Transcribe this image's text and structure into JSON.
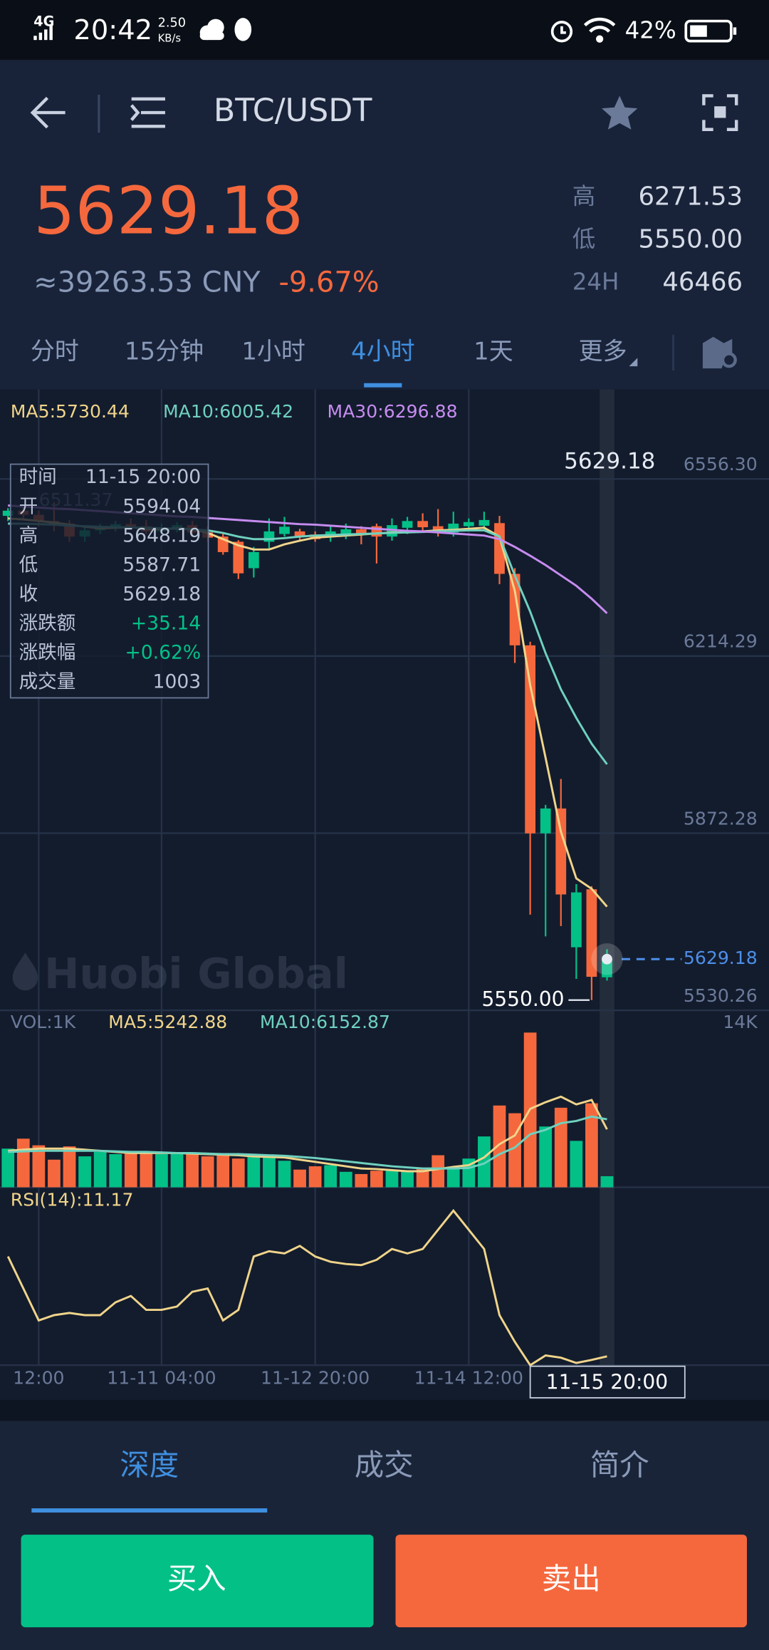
{
  "status_bar": {
    "network": "4G",
    "time": "20:42",
    "speed": "2.50",
    "speed_unit": "KB/s",
    "battery": "42%"
  },
  "header": {
    "pair": "BTC/USDT"
  },
  "ticker": {
    "price": "5629.18",
    "cny": "≈39263.53 CNY",
    "change": "-9.67%",
    "stats": [
      {
        "label": "高",
        "value": "6271.53"
      },
      {
        "label": "低",
        "value": "5550.00"
      },
      {
        "label": "24H",
        "value": "46466"
      }
    ]
  },
  "periods": {
    "items": [
      "分时",
      "15分钟",
      "1小时",
      "4小时",
      "1天",
      "更多"
    ],
    "active": 3
  },
  "chart_data": [
    {
      "type": "candlestick",
      "categories": [
        null,
        null,
        "12:00",
        null,
        null,
        null,
        null,
        null,
        null,
        null,
        "11-11 04:00",
        null,
        null,
        null,
        null,
        null,
        null,
        null,
        null,
        null,
        "11-12 20:00",
        null,
        null,
        null,
        null,
        null,
        null,
        null,
        null,
        null,
        "11-14 12:00",
        null,
        null,
        null,
        null,
        null,
        null,
        null,
        null,
        "11-15 20:00"
      ],
      "open": [
        6485,
        6495,
        6487,
        6475,
        6470,
        6445,
        6457,
        6463,
        6469,
        6465,
        6455,
        6461,
        6467,
        6453,
        6445,
        6435,
        6384,
        6435,
        6450,
        6455,
        6449,
        6445,
        6447,
        6459,
        6465,
        6445,
        6462,
        6475,
        6465,
        6453,
        6465,
        6466,
        6471,
        6373,
        6235,
        5872,
        5920,
        5652,
        5764,
        5594.04
      ],
      "high": [
        6500,
        6505,
        6495,
        6511.37,
        6477,
        6465,
        6470,
        6475,
        6480,
        6477,
        6470,
        6473,
        6475,
        6465,
        6450,
        6438,
        6425,
        6480,
        6483,
        6460,
        6455,
        6465,
        6470,
        6465,
        6470,
        6480,
        6483,
        6490,
        6498,
        6493,
        6480,
        6493,
        6485,
        6384,
        6242,
        5927,
        5977,
        5774,
        5770,
        5648.19
      ],
      "low": [
        6475,
        6480,
        6465,
        6455,
        6435,
        6435,
        6450,
        6455,
        6460,
        6450,
        6445,
        6453,
        6445,
        6435,
        6410,
        6363,
        6366,
        6420,
        6445,
        6437,
        6435,
        6435,
        6440,
        6430,
        6393,
        6437,
        6450,
        6455,
        6445,
        6445,
        6455,
        6459,
        6353,
        6201,
        5715,
        5673,
        5693,
        5591,
        5550,
        5587.71
      ],
      "close": [
        6495,
        6487,
        6475,
        6470,
        6445,
        6457,
        6463,
        6469,
        6465,
        6455,
        6461,
        6467,
        6453,
        6443,
        6415,
        6374,
        6415,
        6455,
        6464,
        6445,
        6440,
        6455,
        6459,
        6450,
        6445,
        6467,
        6475,
        6463,
        6453,
        6470,
        6473,
        6477,
        6373,
        6235,
        5872,
        5920,
        5754,
        5758,
        5595,
        5629.18
      ],
      "colors": {
        "up": "#03c087",
        "down": "#f5683d"
      },
      "ma_lines": [
        {
          "name": "MA5:5730.44",
          "color": "#f0d48a",
          "values": [
            6480,
            6478,
            6475,
            6472,
            6468,
            6464,
            6461,
            6462,
            6463,
            6460,
            6459,
            6461,
            6459,
            6452,
            6440,
            6428,
            6420,
            6420,
            6430,
            6437,
            6443,
            6445,
            6447,
            6449,
            6451,
            6453,
            6453,
            6455,
            6457,
            6458,
            6460,
            6462,
            6445,
            6340,
            6158,
            6018,
            5875,
            5785,
            5765,
            5730.44
          ]
        },
        {
          "name": "MA10:6005.42",
          "color": "#6fd1bf",
          "values": [
            6470,
            6470,
            6469,
            6468,
            6466,
            6465,
            6464,
            6463,
            6463,
            6462,
            6461,
            6460,
            6459,
            6457,
            6452,
            6445,
            6440,
            6440,
            6442,
            6445,
            6447,
            6448,
            6449,
            6450,
            6451,
            6452,
            6453,
            6454,
            6455,
            6456,
            6457,
            6457,
            6445,
            6370,
            6300,
            6220,
            6150,
            6095,
            6045,
            6005.42
          ]
        },
        {
          "name": "MA30:6296.88",
          "color": "#c68cf0",
          "values": [
            6505,
            6503,
            6501,
            6499,
            6498,
            6496,
            6494,
            6492,
            6490,
            6488,
            6486,
            6484,
            6483,
            6481,
            6479,
            6477,
            6475,
            6473,
            6471,
            6469,
            6468,
            6466,
            6464,
            6462,
            6460,
            6458,
            6456,
            6455,
            6453,
            6451,
            6449,
            6447,
            6440,
            6425,
            6408,
            6390,
            6370,
            6350,
            6325,
            6296.88
          ]
        }
      ],
      "ylim": [
        5530,
        6725
      ],
      "yticks": [
        {
          "value": 6556.3,
          "label": "6556.30"
        },
        6214.29,
        5872.28,
        5530.26
      ],
      "grid": true,
      "annotations": {
        "max_label": "6511.37",
        "min_label": "5550.00",
        "last_price_top": "5629.18",
        "last_price_line": "5629.18"
      },
      "watermark": "Huobi Global"
    },
    {
      "type": "bar",
      "label": "VOL:1K",
      "values": [
        3500,
        4400,
        3800,
        2500,
        3700,
        2800,
        3200,
        3000,
        3200,
        3100,
        3000,
        3100,
        3000,
        2800,
        2900,
        2600,
        2800,
        2700,
        2400,
        1600,
        1900,
        2000,
        1400,
        1200,
        1500,
        1600,
        1500,
        1700,
        2900,
        1700,
        2600,
        4600,
        7400,
        6700,
        14000,
        5500,
        7200,
        4200,
        7600,
        1003
      ],
      "ma_lines": [
        {
          "name": "MA5:5242.88",
          "color": "#f0d48a",
          "values": [
            3300,
            3400,
            3500,
            3500,
            3500,
            3400,
            3300,
            3200,
            3100,
            3100,
            3100,
            3100,
            3050,
            3000,
            2950,
            2900,
            2800,
            2750,
            2700,
            2500,
            2300,
            2100,
            1900,
            1700,
            1650,
            1550,
            1450,
            1450,
            1650,
            1850,
            2000,
            2700,
            3900,
            4700,
            7100,
            7700,
            8200,
            7500,
            7900,
            5242.88
          ]
        },
        {
          "name": "MA10:6152.87",
          "color": "#6fd1bf",
          "values": [
            3200,
            3250,
            3300,
            3300,
            3300,
            3300,
            3300,
            3250,
            3200,
            3200,
            3150,
            3100,
            3100,
            3050,
            3000,
            3000,
            2950,
            2900,
            2850,
            2750,
            2650,
            2500,
            2350,
            2200,
            2050,
            1900,
            1800,
            1700,
            1700,
            1700,
            1750,
            2150,
            3000,
            3600,
            4800,
            5200,
            5800,
            6000,
            6400,
            6152.87
          ]
        }
      ],
      "ylim": [
        0,
        16000
      ],
      "yticks": [
        {
          "value": 14000,
          "label": "14K"
        }
      ]
    },
    {
      "type": "line",
      "title": "RSI(14):11.17",
      "color": "#f0d48a",
      "values": [
        47.1,
        35.6,
        24.1,
        26,
        26.8,
        26,
        26,
        30.6,
        32.9,
        27.9,
        27.9,
        29.1,
        34.4,
        35.6,
        24.1,
        27.9,
        47.1,
        49,
        48.2,
        50.9,
        47.1,
        45.2,
        44.4,
        44,
        45.9,
        49.8,
        48.2,
        49.8,
        56.7,
        63.6,
        56.7,
        49.8,
        26,
        16.4,
        8,
        11.5,
        10.7,
        8.8,
        9.9,
        11.17
      ],
      "ylim": [
        8,
        72
      ]
    }
  ],
  "info_box": {
    "rows": [
      [
        "时间",
        "11-15 20:00"
      ],
      [
        "开",
        "5594.04"
      ],
      [
        "高",
        "5648.19"
      ],
      [
        "低",
        "5587.71"
      ],
      [
        "收",
        "5629.18"
      ],
      [
        "涨跌额",
        "+35.14"
      ],
      [
        "涨跌幅",
        "+0.62%"
      ],
      [
        "成交量",
        "1003"
      ]
    ]
  },
  "bottom_tabs": {
    "items": [
      "深度",
      "成交",
      "简介"
    ],
    "active": 0
  },
  "actions": {
    "buy": "买入",
    "sell": "卖出"
  }
}
